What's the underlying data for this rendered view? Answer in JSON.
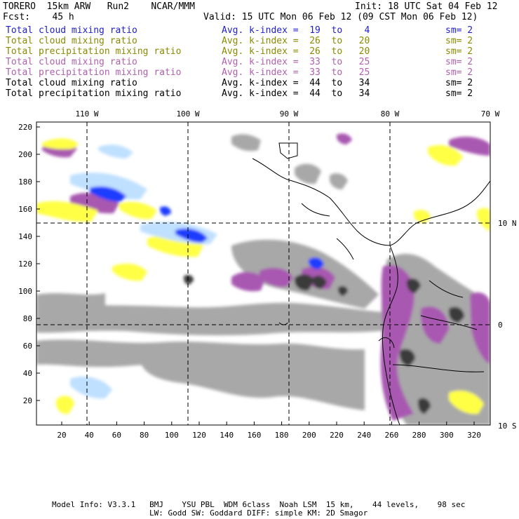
{
  "header": {
    "model": "TORERO  15km ARW   Run2    NCAR/MMM",
    "init": "Init: 18 UTC Sat 04 Feb 12",
    "fcst": "Fcst:    45 h",
    "valid": "Valid: 15 UTC Mon 06 Feb 12 (09 CST Mon 06 Feb 12)"
  },
  "legend": [
    {
      "field": "Total cloud mixing ratio",
      "stat": "Avg. k-index =  19  to    4",
      "sm": "sm= 2",
      "color": "#2020d0"
    },
    {
      "field": "Total cloud mixing ratio",
      "stat": "Avg. k-index =  26  to   20",
      "sm": "sm= 2",
      "color": "#8a8a00"
    },
    {
      "field": "Total precipitation mixing ratio",
      "stat": "Avg. k-index =  26  to   20",
      "sm": "sm= 2",
      "color": "#8a8a00"
    },
    {
      "field": "Total cloud mixing ratio",
      "stat": "Avg. k-index =  33  to   25",
      "sm": "sm= 2",
      "color": "#b060b0"
    },
    {
      "field": "Total precipitation mixing ratio",
      "stat": "Avg. k-index =  33  to   25",
      "sm": "sm= 2",
      "color": "#b060b0"
    },
    {
      "field": "Total cloud mixing ratio",
      "stat": "Avg. k-index =  44  to   34",
      "sm": "sm= 2",
      "color": "#000000"
    },
    {
      "field": "Total precipitation mixing ratio",
      "stat": "Avg. k-index =  44  to   34",
      "sm": "sm= 2",
      "color": "#000000"
    }
  ],
  "map": {
    "lon_labels": [
      "110 W",
      "100 W",
      "90 W",
      "80 W",
      "70 W"
    ],
    "lat_labels": [
      "10 N",
      "0",
      "10 S"
    ],
    "y_ticks": [
      "220",
      "200",
      "180",
      "160",
      "140",
      "120",
      "100",
      "80",
      "60",
      "40",
      "20"
    ],
    "x_ticks": [
      "20",
      "40",
      "60",
      "80",
      "100",
      "120",
      "140",
      "160",
      "180",
      "200",
      "220",
      "240",
      "260",
      "280",
      "300",
      "320"
    ],
    "colors": {
      "gray": "#a8a8a8",
      "dark": "#3a3a3a",
      "magenta": "#a858b0",
      "yellow": "#ffff44",
      "blue": "#1e3cff",
      "lightblue": "#bfe0ff"
    }
  },
  "footer": {
    "line1": "Model Info: V3.3.1   BMJ    YSU PBL  WDM 6class  Noah LSM  15 km,    44 levels,    98 sec",
    "line2": "LW: Godd SW: Goddard DIFF: simple KM: 2D Smagor"
  }
}
